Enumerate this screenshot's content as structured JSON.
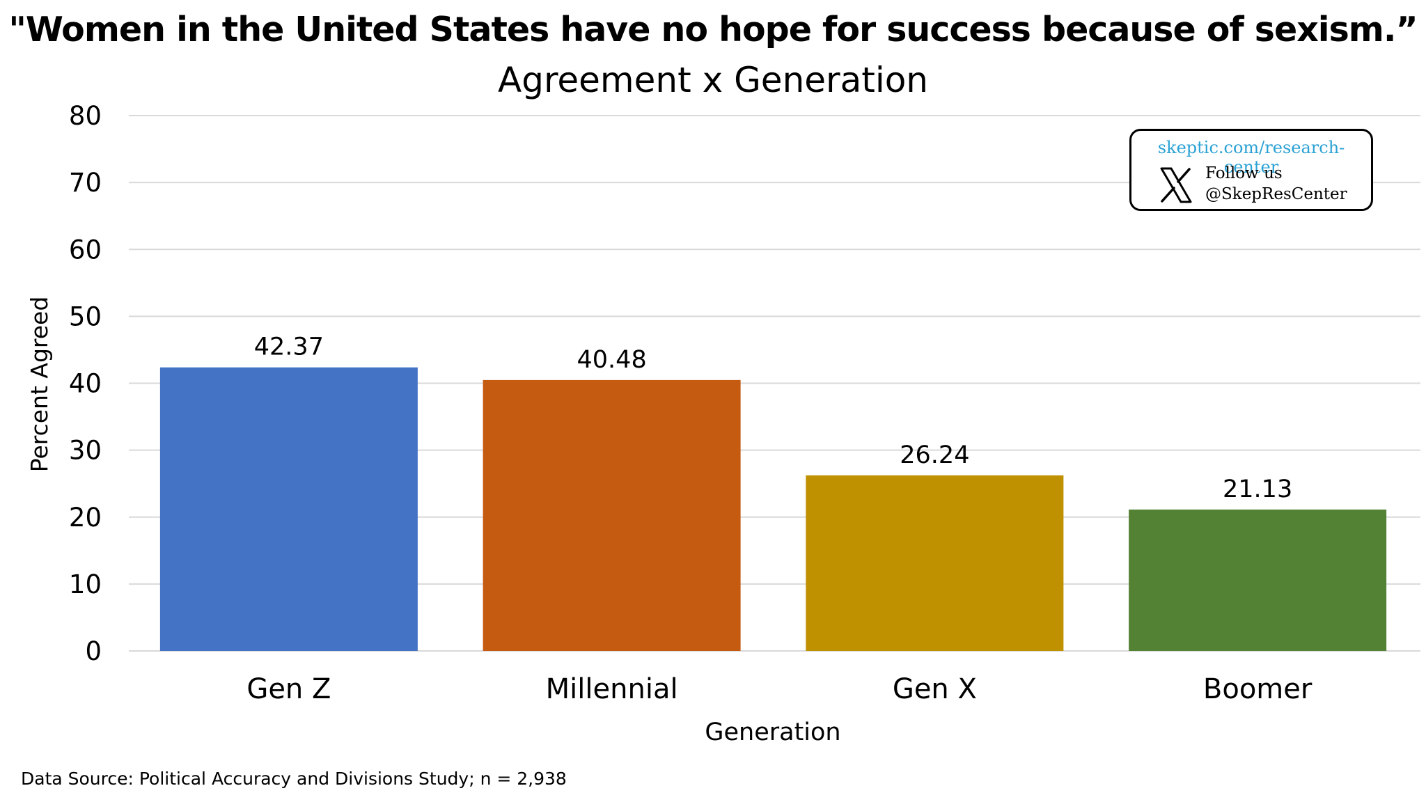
{
  "colors": {
    "gen_z": "#4472c4",
    "millennial": "#c55a11",
    "gen_x": "#bf9000",
    "boomer": "#548235",
    "gridline": "#d9d9d9",
    "badge_link": "#2aa1d4"
  },
  "chart_data": {
    "type": "bar",
    "title": "\"Women in the United States have no hope for success because of sexism.”",
    "subtitle": "Agreement x Generation",
    "xlabel": "Generation",
    "ylabel": "Percent Agreed",
    "categories": [
      "Gen Z",
      "Millennial",
      "Gen X",
      "Boomer"
    ],
    "values": [
      42.37,
      40.48,
      26.24,
      21.13
    ],
    "data_labels": [
      "42.37",
      "40.48",
      "26.24",
      "21.13"
    ],
    "bar_colors": [
      "#4472c4",
      "#c55a11",
      "#bf9000",
      "#548235"
    ],
    "ylim": [
      0,
      80
    ],
    "yticks": [
      0,
      10,
      20,
      30,
      40,
      50,
      60,
      70,
      80
    ],
    "grid": true,
    "legend": "none"
  },
  "badge": {
    "url": "skeptic.com/research-center",
    "follow_text": "Follow us",
    "handle": "@SkepResCenter",
    "icon": "x-logo-icon"
  },
  "source_note": "Data Source: Political Accuracy and Divisions Study; n = 2,938"
}
